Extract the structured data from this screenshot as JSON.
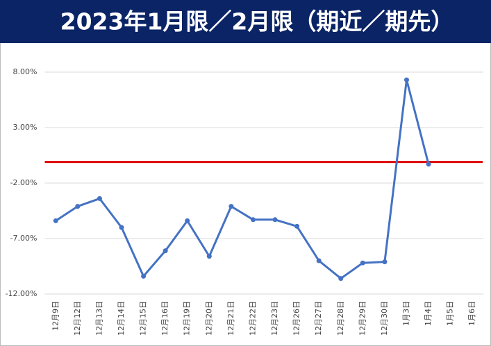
{
  "chart_data": {
    "type": "line",
    "title": "2023年1月限／2月限（期近／期先）",
    "categories": [
      "12月9日",
      "12月12日",
      "12月13日",
      "12月14日",
      "12月15日",
      "12月16日",
      "12月19日",
      "12月20日",
      "12月21日",
      "12月22日",
      "12月23日",
      "12月26日",
      "12月27日",
      "12月28日",
      "12月29日",
      "12月30日",
      "1月3日",
      "1月4日",
      "1月5日",
      "1月6日"
    ],
    "series": [
      {
        "color": "#4472c4",
        "values": [
          -5.4,
          -4.1,
          -3.4,
          -6.0,
          -10.4,
          -8.1,
          -5.4,
          -8.6,
          -4.1,
          -5.3,
          -5.3,
          -5.9,
          -9.0,
          -10.6,
          -9.2,
          -9.1,
          7.3,
          -0.3,
          null,
          null
        ]
      }
    ],
    "reference_line": {
      "value": -0.1,
      "color": "#e00000"
    },
    "ylim": [
      -12,
      8
    ],
    "yticks": [
      {
        "value": -12,
        "label": "-12.00%"
      },
      {
        "value": -7,
        "label": "-7.00%"
      },
      {
        "value": -2,
        "label": "-2.00%"
      },
      {
        "value": 3,
        "label": "3.00%"
      },
      {
        "value": 8,
        "label": "8.00%"
      }
    ],
    "grid": true
  }
}
